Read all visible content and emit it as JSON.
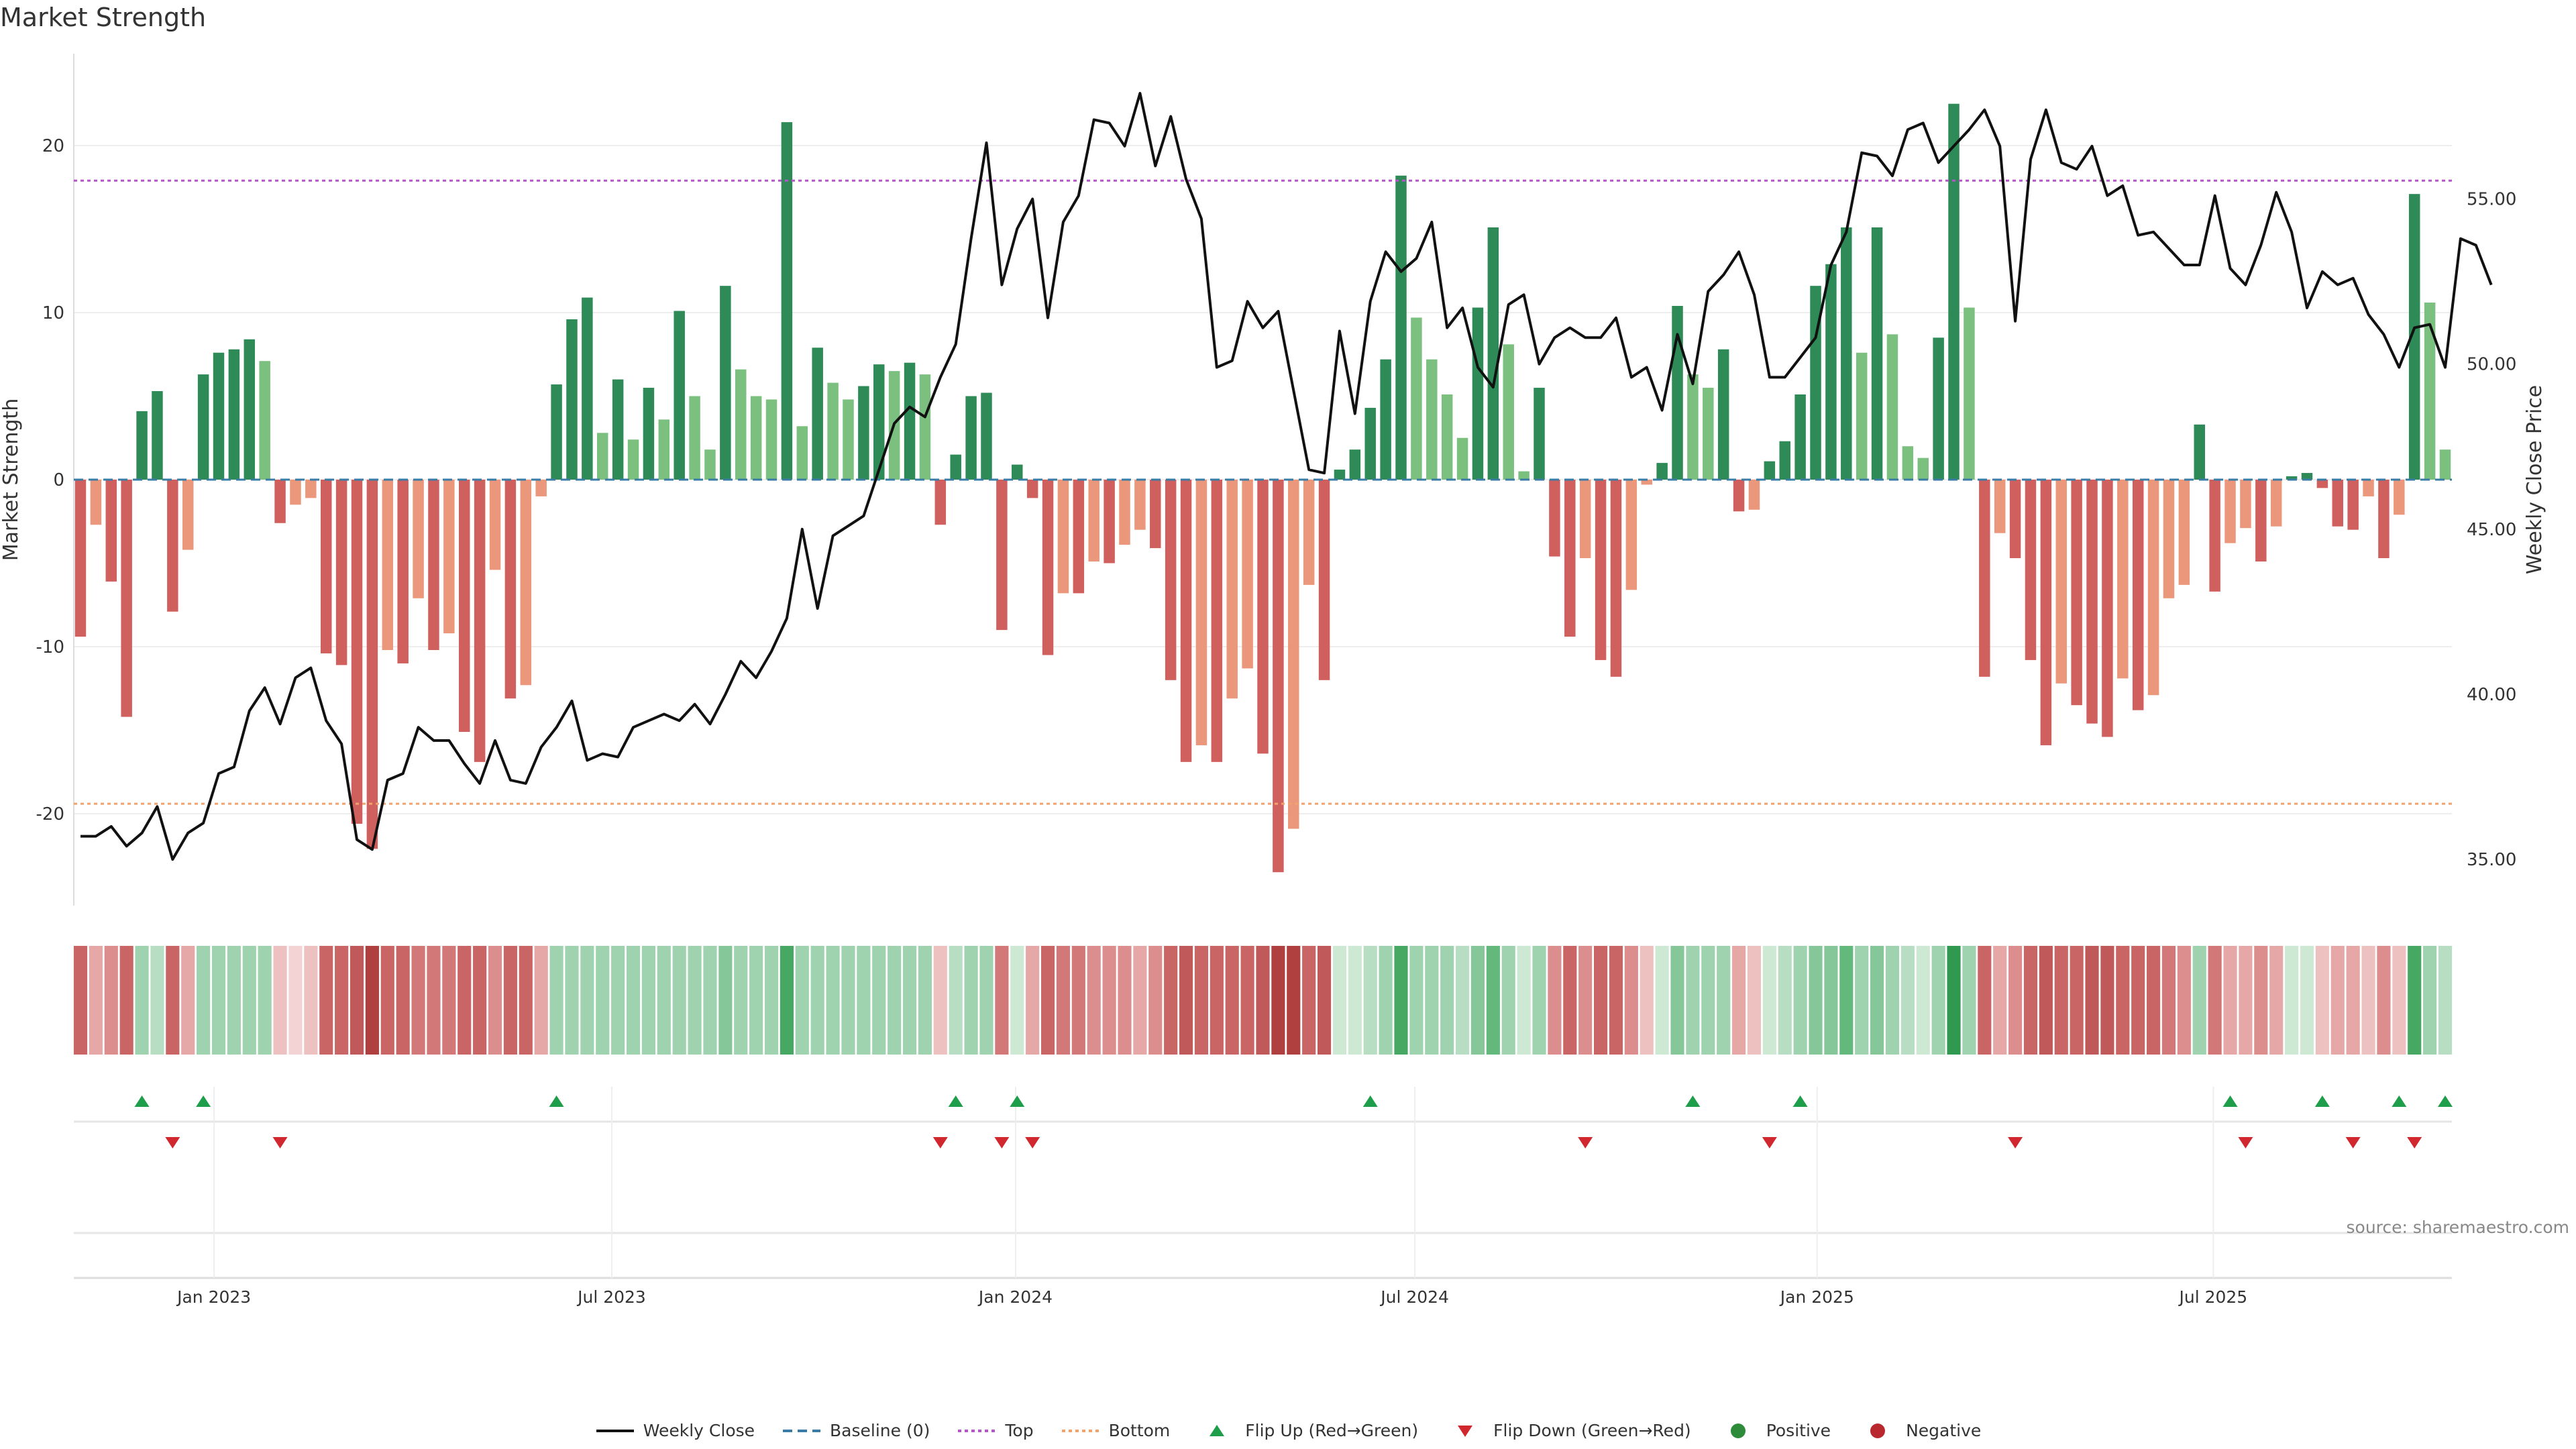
{
  "title": "Market Strength",
  "source": "source: sharemaestro.com",
  "legend": [
    {
      "label": "Weekly Close",
      "kind": "line",
      "color": "#111111"
    },
    {
      "label": "Baseline (0)",
      "kind": "dash",
      "color": "#3a7ca5"
    },
    {
      "label": "Top",
      "kind": "dot",
      "color": "#b455c8"
    },
    {
      "label": "Bottom",
      "kind": "dot",
      "color": "#f2a26d"
    },
    {
      "label": "Flip Up (Red→Green)",
      "kind": "tri-up",
      "color": "#1e9e4a"
    },
    {
      "label": "Flip Down (Green→Red)",
      "kind": "tri-down",
      "color": "#d0282e"
    },
    {
      "label": "Positive",
      "kind": "circle",
      "color": "#2e8b3a"
    },
    {
      "label": "Negative",
      "kind": "circle",
      "color": "#b8282e"
    }
  ],
  "chart_data": {
    "type": "bar+line",
    "xlabel": "",
    "ylabel": "Market Strength",
    "y2label": "Weekly Close Price",
    "ylim": [
      -25.5,
      25.5
    ],
    "y2lim": [
      33.6,
      59.4
    ],
    "yticks": [
      -20,
      -10,
      0,
      10,
      20
    ],
    "y2ticks": [
      "35.00",
      "40.00",
      "45.00",
      "50.00",
      "55.00"
    ],
    "x_tick_labels": [
      "Jan 2023",
      "Jul 2023",
      "Jan 2024",
      "Jul 2024",
      "Jan 2025",
      "Jul 2025"
    ],
    "x_tick_weeks": [
      8.7,
      34.6,
      60.9,
      86.9,
      113.1,
      138.9
    ],
    "start_week_of": "2022-11-04",
    "top_line": 17.9,
    "bottom_line": -19.4,
    "grid": true,
    "strength": [
      -9.4,
      -2.7,
      -6.1,
      -14.2,
      4.1,
      5.3,
      -7.9,
      -4.2,
      6.3,
      7.6,
      7.8,
      8.4,
      7.1,
      -2.6,
      -1.5,
      -1.1,
      -10.4,
      -11.1,
      -20.6,
      -22.1,
      -10.2,
      -11.0,
      -7.1,
      -10.2,
      -9.2,
      -15.1,
      -16.9,
      -5.4,
      -13.1,
      -12.3,
      -1.0,
      5.7,
      9.6,
      10.9,
      2.8,
      6.0,
      2.4,
      5.5,
      3.6,
      10.1,
      5.0,
      1.8,
      11.6,
      6.6,
      5.0,
      4.8,
      21.4,
      3.2,
      7.9,
      5.8,
      4.8,
      5.6,
      6.9,
      6.5,
      7.0,
      6.3,
      -2.7,
      1.5,
      5.0,
      5.2,
      -9.0,
      0.9,
      -1.1,
      -10.5,
      -6.8,
      -6.8,
      -4.9,
      -5.0,
      -3.9,
      -3.0,
      -4.1,
      -12.0,
      -16.9,
      -15.9,
      -16.9,
      -13.1,
      -11.3,
      -16.4,
      -23.5,
      -20.9,
      -6.3,
      -12.0,
      0.6,
      1.8,
      4.3,
      7.2,
      18.2,
      9.7,
      7.2,
      5.1,
      2.5,
      10.3,
      15.1,
      8.1,
      0.5,
      5.5,
      -4.6,
      -9.4,
      -4.7,
      -10.8,
      -11.8,
      -6.6,
      -0.3,
      1.0,
      10.4,
      6.3,
      5.5,
      7.8,
      -1.9,
      -1.8,
      1.1,
      2.3,
      5.1,
      11.6,
      12.9,
      15.1,
      7.6,
      15.1,
      8.7,
      2.0,
      1.3,
      8.5,
      22.5,
      10.3,
      -11.8,
      -3.2,
      -4.7,
      -10.8,
      -15.9,
      -12.2,
      -13.5,
      -14.6,
      -15.4,
      -11.9,
      -13.8,
      -12.9,
      -7.1,
      -6.3,
      3.3,
      -6.7,
      -3.8,
      -2.9,
      -4.9,
      -2.8,
      0.2,
      0.4,
      -0.5,
      -2.8,
      -3.0,
      -1.0,
      -4.7,
      -2.1,
      17.1,
      10.6,
      1.8
    ],
    "weekly_close": [
      35.7,
      35.7,
      36.0,
      35.4,
      35.8,
      36.6,
      35.0,
      35.8,
      36.1,
      37.6,
      37.8,
      39.5,
      40.2,
      39.1,
      40.5,
      40.8,
      39.2,
      38.5,
      35.6,
      35.3,
      37.4,
      37.6,
      39.0,
      38.6,
      38.6,
      37.9,
      37.3,
      38.6,
      37.4,
      37.3,
      38.4,
      39.0,
      39.8,
      38.0,
      38.2,
      38.1,
      39.0,
      39.2,
      39.4,
      39.2,
      39.7,
      39.1,
      40.0,
      41.0,
      40.5,
      41.3,
      42.3,
      45.0,
      42.6,
      44.8,
      45.1,
      45.4,
      46.8,
      48.2,
      48.7,
      48.4,
      49.6,
      50.6,
      53.8,
      56.7,
      52.4,
      54.1,
      55.0,
      51.4,
      54.3,
      55.1,
      57.4,
      57.3,
      56.6,
      58.2,
      56.0,
      57.5,
      55.6,
      54.4,
      49.9,
      50.1,
      51.9,
      51.1,
      51.6,
      49.2,
      46.8,
      46.7,
      51.0,
      48.5,
      51.9,
      53.4,
      52.8,
      53.2,
      54.3,
      51.1,
      51.7,
      49.9,
      49.3,
      51.8,
      52.1,
      50.0,
      50.8,
      51.1,
      50.8,
      50.8,
      51.4,
      49.6,
      49.9,
      48.6,
      50.9,
      49.4,
      52.2,
      52.7,
      53.4,
      52.1,
      49.6,
      49.6,
      50.2,
      50.8,
      53.0,
      54.0,
      56.4,
      56.3,
      55.7,
      57.1,
      57.3,
      56.1,
      56.6,
      57.1,
      57.7,
      56.6,
      51.3,
      56.2,
      57.7,
      56.1,
      55.9,
      56.6,
      55.1,
      55.4,
      53.9,
      54.0,
      53.5,
      53.0,
      53.0,
      55.1,
      52.9,
      52.4,
      53.6,
      55.2,
      54.0,
      51.7,
      52.8,
      52.4,
      52.6,
      51.5,
      50.9,
      49.9,
      51.1,
      51.2,
      49.9,
      53.8,
      53.6,
      52.4
    ],
    "top_heat": [
      -6,
      -3,
      -4,
      -6,
      3,
      2,
      -6,
      -3,
      3,
      3,
      3,
      3,
      3,
      -2,
      -1,
      -2,
      -6,
      -6,
      -7,
      -9,
      -6,
      -6,
      -5,
      -5,
      -5,
      -6,
      -6,
      -4,
      -6,
      -6,
      -3,
      3,
      3,
      3,
      3,
      3,
      3,
      3,
      3,
      3,
      3,
      3,
      4,
      3,
      3,
      3,
      6,
      3,
      3,
      3,
      3,
      3,
      3,
      3,
      3,
      3,
      -2,
      2,
      3,
      3,
      -5,
      1,
      -3,
      -6,
      -5,
      -5,
      -4,
      -4,
      -4,
      -3,
      -4,
      -6,
      -7,
      -6,
      -6,
      -6,
      -6,
      -7,
      -9,
      -9,
      -6,
      -7,
      1,
      1,
      2,
      3,
      6,
      3,
      3,
      3,
      2,
      4,
      5,
      3,
      1,
      3,
      -4,
      -6,
      -4,
      -6,
      -6,
      -4,
      -2,
      1,
      4,
      3,
      3,
      3,
      -3,
      -2,
      1,
      2,
      3,
      4,
      4,
      5,
      3,
      4,
      3,
      2,
      1,
      3,
      7,
      3,
      -6,
      -3,
      -4,
      -6,
      -7,
      -6,
      -6,
      -7,
      -7,
      -6,
      -6,
      -6,
      -5,
      -4,
      3,
      -5,
      -3,
      -3,
      -4,
      -3,
      1,
      1,
      -2,
      -3,
      -3,
      -2,
      -4,
      -2,
      6,
      3,
      2
    ],
    "flip_up_weeks": [
      4,
      8,
      31,
      57,
      61,
      84,
      105,
      112,
      140,
      146,
      151,
      154
    ],
    "flip_down_weeks": [
      6,
      13,
      56,
      60,
      62,
      98,
      110,
      126,
      141,
      148,
      152
    ]
  }
}
